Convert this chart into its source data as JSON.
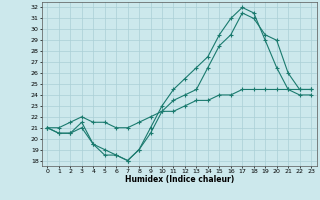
{
  "title": "",
  "xlabel": "Humidex (Indice chaleur)",
  "xlim": [
    -0.5,
    23.5
  ],
  "ylim": [
    17.5,
    32.5
  ],
  "yticks": [
    18,
    19,
    20,
    21,
    22,
    23,
    24,
    25,
    26,
    27,
    28,
    29,
    30,
    31,
    32
  ],
  "xticks": [
    0,
    1,
    2,
    3,
    4,
    5,
    6,
    7,
    8,
    9,
    10,
    11,
    12,
    13,
    14,
    15,
    16,
    17,
    18,
    19,
    20,
    21,
    22,
    23
  ],
  "line_color": "#1a7a6e",
  "bg_color": "#cce8ec",
  "grid_color": "#aacfd6",
  "line1_x": [
    0,
    1,
    2,
    3,
    4,
    5,
    6,
    7,
    8,
    9,
    10,
    11,
    12,
    13,
    14,
    15,
    16,
    17,
    18,
    19,
    20,
    21,
    22,
    23
  ],
  "line1_y": [
    21.0,
    20.5,
    20.5,
    21.5,
    19.5,
    18.5,
    18.5,
    18.0,
    19.0,
    21.0,
    23.0,
    24.5,
    25.5,
    26.5,
    27.5,
    29.5,
    31.0,
    32.0,
    31.5,
    29.0,
    26.5,
    24.5,
    24.0,
    24.0
  ],
  "line2_x": [
    0,
    1,
    2,
    3,
    4,
    5,
    6,
    7,
    8,
    9,
    10,
    11,
    12,
    13,
    14,
    15,
    16,
    17,
    18,
    19,
    20,
    21,
    22,
    23
  ],
  "line2_y": [
    21.0,
    20.5,
    20.5,
    21.0,
    19.5,
    19.0,
    18.5,
    18.0,
    19.0,
    20.5,
    22.5,
    23.5,
    24.0,
    24.5,
    26.5,
    28.5,
    29.5,
    31.5,
    31.0,
    29.5,
    29.0,
    26.0,
    24.5,
    24.5
  ],
  "line3_x": [
    0,
    1,
    2,
    3,
    4,
    5,
    6,
    7,
    8,
    9,
    10,
    11,
    12,
    13,
    14,
    15,
    16,
    17,
    18,
    19,
    20,
    21,
    22,
    23
  ],
  "line3_y": [
    21.0,
    21.0,
    21.5,
    22.0,
    21.5,
    21.5,
    21.0,
    21.0,
    21.5,
    22.0,
    22.5,
    22.5,
    23.0,
    23.5,
    23.5,
    24.0,
    24.0,
    24.5,
    24.5,
    24.5,
    24.5,
    24.5,
    24.5,
    24.5
  ]
}
